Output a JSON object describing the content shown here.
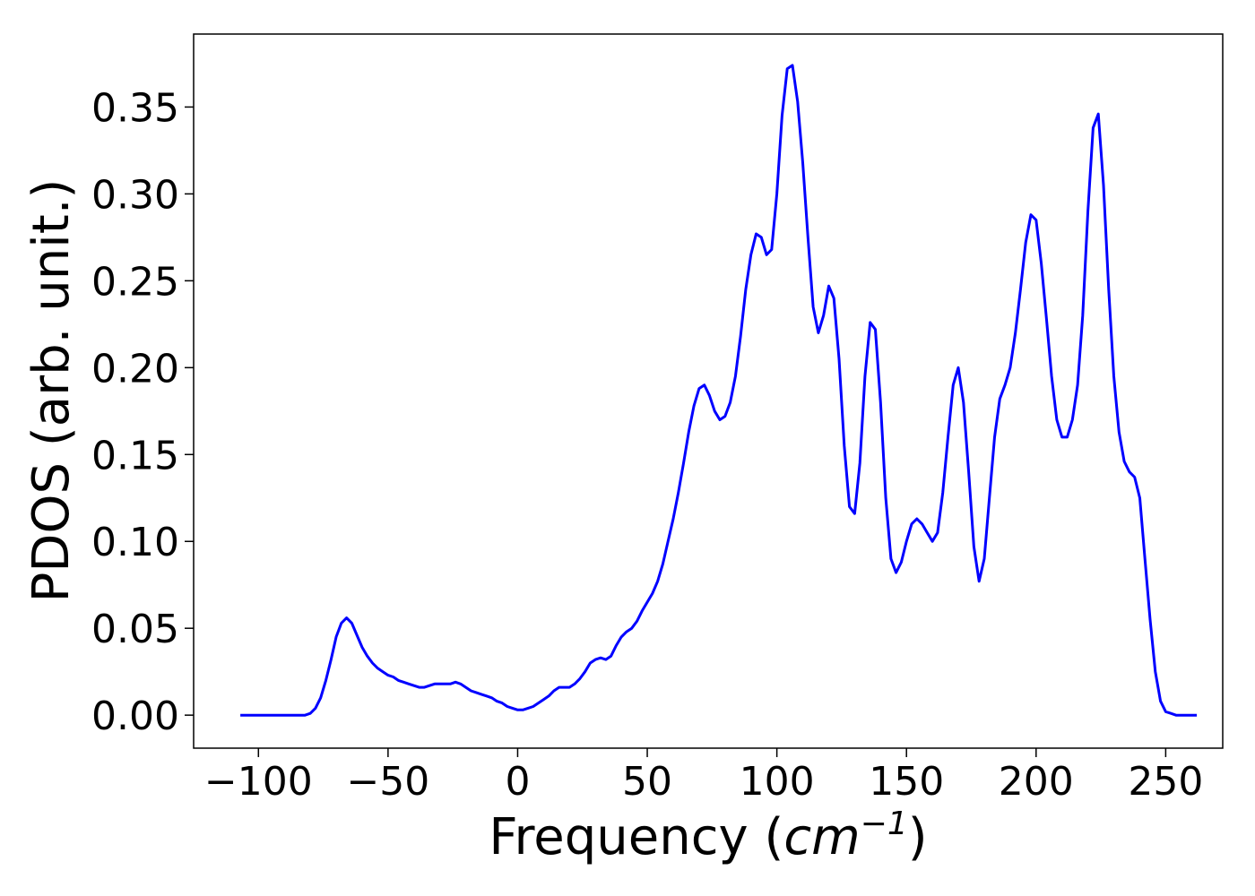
{
  "chart_data": {
    "type": "line",
    "title": "",
    "xlabel_main": "Frequency (",
    "xlabel_unit_base": "cm",
    "xlabel_unit_exp": "−1",
    "xlabel_close": ")",
    "ylabel": "PDOS (arb. unit.)",
    "xlim": [
      -125,
      272
    ],
    "ylim": [
      -0.019,
      0.392
    ],
    "x_ticks": [
      -100,
      -50,
      0,
      50,
      100,
      150,
      200,
      250
    ],
    "x_tick_labels": [
      "−100",
      "−50",
      "0",
      "50",
      "100",
      "150",
      "200",
      "250"
    ],
    "y_ticks": [
      0.0,
      0.05,
      0.1,
      0.15,
      0.2,
      0.25,
      0.3,
      0.35
    ],
    "y_tick_labels": [
      "0.00",
      "0.05",
      "0.10",
      "0.15",
      "0.20",
      "0.25",
      "0.30",
      "0.35"
    ],
    "grid": false,
    "legend": "none",
    "series": [
      {
        "color": "#0000ff",
        "points": [
          [
            -107,
            0.0
          ],
          [
            -82,
            0.0
          ],
          [
            -80,
            0.001
          ],
          [
            -78,
            0.004
          ],
          [
            -76,
            0.01
          ],
          [
            -74,
            0.02
          ],
          [
            -72,
            0.032
          ],
          [
            -70,
            0.045
          ],
          [
            -68,
            0.053
          ],
          [
            -66,
            0.056
          ],
          [
            -64,
            0.053
          ],
          [
            -62,
            0.046
          ],
          [
            -60,
            0.039
          ],
          [
            -58,
            0.034
          ],
          [
            -56,
            0.03
          ],
          [
            -54,
            0.027
          ],
          [
            -52,
            0.025
          ],
          [
            -50,
            0.023
          ],
          [
            -48,
            0.022
          ],
          [
            -46,
            0.02
          ],
          [
            -44,
            0.019
          ],
          [
            -42,
            0.018
          ],
          [
            -40,
            0.017
          ],
          [
            -38,
            0.016
          ],
          [
            -36,
            0.016
          ],
          [
            -34,
            0.017
          ],
          [
            -32,
            0.018
          ],
          [
            -30,
            0.018
          ],
          [
            -28,
            0.018
          ],
          [
            -26,
            0.018
          ],
          [
            -24,
            0.019
          ],
          [
            -22,
            0.018
          ],
          [
            -20,
            0.016
          ],
          [
            -18,
            0.014
          ],
          [
            -16,
            0.013
          ],
          [
            -14,
            0.012
          ],
          [
            -12,
            0.011
          ],
          [
            -10,
            0.01
          ],
          [
            -8,
            0.008
          ],
          [
            -6,
            0.007
          ],
          [
            -4,
            0.005
          ],
          [
            -2,
            0.004
          ],
          [
            0,
            0.003
          ],
          [
            2,
            0.003
          ],
          [
            4,
            0.004
          ],
          [
            6,
            0.005
          ],
          [
            8,
            0.007
          ],
          [
            10,
            0.009
          ],
          [
            12,
            0.011
          ],
          [
            14,
            0.014
          ],
          [
            16,
            0.016
          ],
          [
            18,
            0.016
          ],
          [
            20,
            0.016
          ],
          [
            22,
            0.018
          ],
          [
            24,
            0.021
          ],
          [
            26,
            0.025
          ],
          [
            28,
            0.03
          ],
          [
            30,
            0.032
          ],
          [
            32,
            0.033
          ],
          [
            34,
            0.032
          ],
          [
            36,
            0.034
          ],
          [
            38,
            0.04
          ],
          [
            40,
            0.045
          ],
          [
            42,
            0.048
          ],
          [
            44,
            0.05
          ],
          [
            46,
            0.054
          ],
          [
            48,
            0.06
          ],
          [
            50,
            0.065
          ],
          [
            52,
            0.07
          ],
          [
            54,
            0.077
          ],
          [
            56,
            0.087
          ],
          [
            58,
            0.1
          ],
          [
            60,
            0.113
          ],
          [
            62,
            0.128
          ],
          [
            64,
            0.145
          ],
          [
            66,
            0.163
          ],
          [
            68,
            0.178
          ],
          [
            70,
            0.188
          ],
          [
            72,
            0.19
          ],
          [
            74,
            0.184
          ],
          [
            76,
            0.175
          ],
          [
            78,
            0.17
          ],
          [
            80,
            0.172
          ],
          [
            82,
            0.18
          ],
          [
            84,
            0.195
          ],
          [
            86,
            0.218
          ],
          [
            88,
            0.245
          ],
          [
            90,
            0.265
          ],
          [
            92,
            0.277
          ],
          [
            94,
            0.275
          ],
          [
            96,
            0.265
          ],
          [
            98,
            0.268
          ],
          [
            100,
            0.3
          ],
          [
            102,
            0.345
          ],
          [
            104,
            0.372
          ],
          [
            106,
            0.374
          ],
          [
            108,
            0.353
          ],
          [
            110,
            0.318
          ],
          [
            112,
            0.275
          ],
          [
            114,
            0.235
          ],
          [
            116,
            0.22
          ],
          [
            118,
            0.23
          ],
          [
            120,
            0.247
          ],
          [
            122,
            0.24
          ],
          [
            124,
            0.205
          ],
          [
            126,
            0.155
          ],
          [
            128,
            0.12
          ],
          [
            130,
            0.116
          ],
          [
            132,
            0.145
          ],
          [
            134,
            0.195
          ],
          [
            136,
            0.226
          ],
          [
            138,
            0.222
          ],
          [
            140,
            0.18
          ],
          [
            142,
            0.125
          ],
          [
            144,
            0.09
          ],
          [
            146,
            0.082
          ],
          [
            148,
            0.088
          ],
          [
            150,
            0.1
          ],
          [
            152,
            0.11
          ],
          [
            154,
            0.113
          ],
          [
            156,
            0.11
          ],
          [
            158,
            0.105
          ],
          [
            160,
            0.1
          ],
          [
            162,
            0.105
          ],
          [
            164,
            0.128
          ],
          [
            166,
            0.16
          ],
          [
            168,
            0.19
          ],
          [
            170,
            0.2
          ],
          [
            172,
            0.18
          ],
          [
            174,
            0.14
          ],
          [
            176,
            0.097
          ],
          [
            178,
            0.077
          ],
          [
            180,
            0.09
          ],
          [
            182,
            0.125
          ],
          [
            184,
            0.16
          ],
          [
            186,
            0.182
          ],
          [
            188,
            0.19
          ],
          [
            190,
            0.2
          ],
          [
            192,
            0.22
          ],
          [
            194,
            0.245
          ],
          [
            196,
            0.272
          ],
          [
            198,
            0.288
          ],
          [
            200,
            0.285
          ],
          [
            202,
            0.26
          ],
          [
            204,
            0.228
          ],
          [
            206,
            0.195
          ],
          [
            208,
            0.17
          ],
          [
            210,
            0.16
          ],
          [
            212,
            0.16
          ],
          [
            214,
            0.17
          ],
          [
            216,
            0.19
          ],
          [
            218,
            0.23
          ],
          [
            220,
            0.29
          ],
          [
            222,
            0.338
          ],
          [
            224,
            0.346
          ],
          [
            226,
            0.305
          ],
          [
            228,
            0.245
          ],
          [
            230,
            0.195
          ],
          [
            232,
            0.163
          ],
          [
            234,
            0.146
          ],
          [
            236,
            0.14
          ],
          [
            238,
            0.137
          ],
          [
            240,
            0.125
          ],
          [
            242,
            0.09
          ],
          [
            244,
            0.055
          ],
          [
            246,
            0.025
          ],
          [
            248,
            0.008
          ],
          [
            250,
            0.002
          ],
          [
            252,
            0.001
          ],
          [
            254,
            0.0
          ],
          [
            256,
            0.0
          ],
          [
            258,
            0.0
          ],
          [
            262,
            0.0
          ]
        ]
      }
    ]
  }
}
